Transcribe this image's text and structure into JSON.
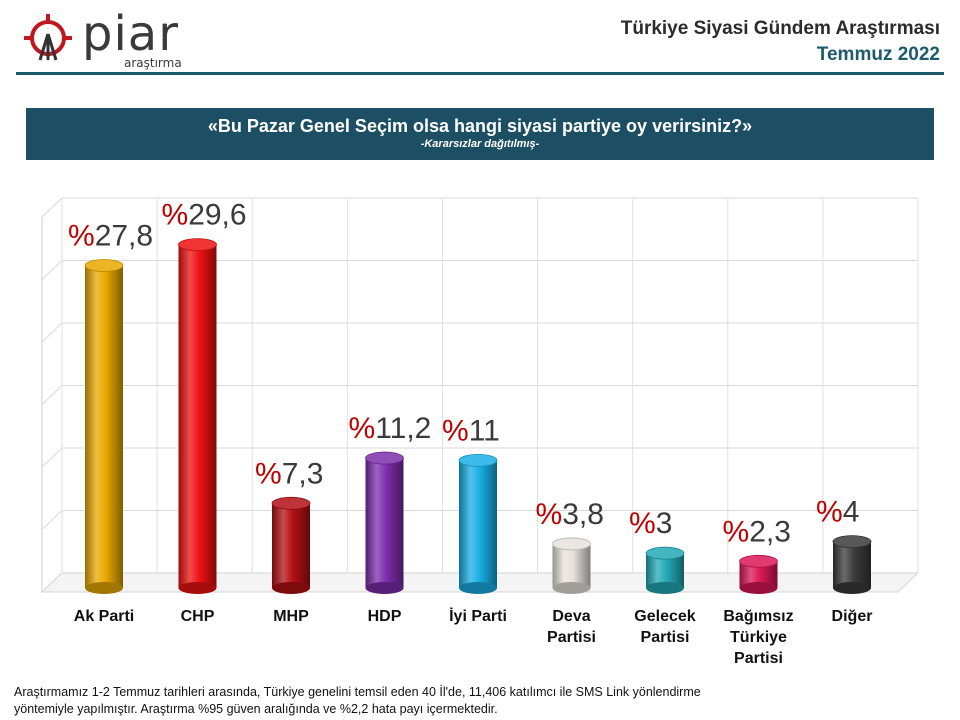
{
  "header": {
    "logo_word": "piar",
    "logo_sub": "araştırma",
    "title": "Türkiye Siyasi Gündem Araştırması",
    "date": "Temmuz 2022"
  },
  "banner": {
    "question": "«Bu Pazar Genel Seçim olsa hangi siyasi partiye oy verirsiniz?»",
    "note": "-Kararsızlar dağıtılmış-"
  },
  "chart_data": {
    "type": "bar",
    "title": "«Bu Pazar Genel Seçim olsa hangi siyasi partiye oy verirsiniz?»",
    "categories": [
      "Ak Parti",
      "CHP",
      "MHP",
      "HDP",
      "İyi Parti",
      "Deva Partisi",
      "Gelecek Partisi",
      "Bağımsız Türkiye Partisi",
      "Diğer"
    ],
    "category_lines": [
      [
        "Ak Parti"
      ],
      [
        "CHP"
      ],
      [
        "MHP"
      ],
      [
        "HDP"
      ],
      [
        "İyi Parti"
      ],
      [
        "Deva",
        "Partisi"
      ],
      [
        "Gelecek",
        "Partisi"
      ],
      [
        "Bağımsız",
        "Türkiye",
        "Partisi"
      ],
      [
        "Diğer"
      ]
    ],
    "values": [
      27.8,
      29.6,
      7.3,
      11.2,
      11,
      3.8,
      3,
      2.3,
      4
    ],
    "value_labels": [
      "27,8",
      "29,6",
      "7,3",
      "11,2",
      "11",
      "3,8",
      "3",
      "2,3",
      "4"
    ],
    "percent_sign": "%",
    "ylim": [
      0,
      30
    ],
    "grid": true,
    "colors": [
      "#e8a800",
      "#ee1111",
      "#b30f14",
      "#7d2dab",
      "#19aee6",
      "#e6e1dc",
      "#22a9b6",
      "#db1758",
      "#3b3b3b"
    ],
    "percent_color": "#c00000",
    "label_color": "#3a3a3a"
  },
  "footer": {
    "line1": "Araştırmamız 1-2 Temmuz tarihleri arasında, Türkiye genelini temsil eden 40 İl'de, 11,406 katılımcı ile SMS Link yönlendirme",
    "line2": "yöntemiyle yapılmıştır. Araştırma %95 güven aralığında ve %2,2 hata payı içermektedir."
  }
}
